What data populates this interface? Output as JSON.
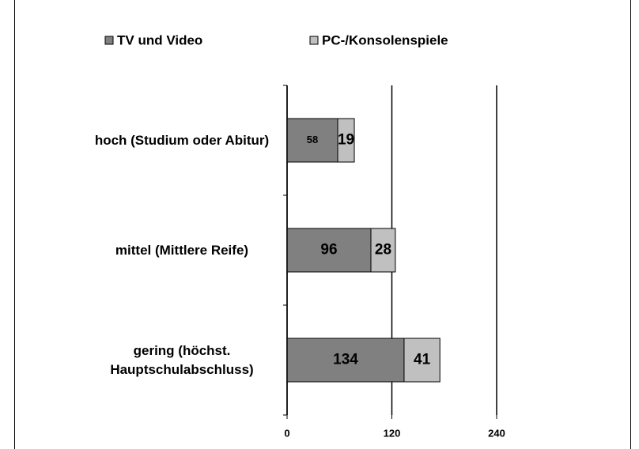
{
  "chart_data": {
    "type": "bar",
    "orientation": "horizontal",
    "stacked": true,
    "categories": [
      "hoch (Studium oder Abitur)",
      "mittel (Mittlere Reife)",
      "gering (höchst. Hauptschulabschluss)"
    ],
    "series": [
      {
        "name": "TV und Video",
        "color": "#808080",
        "values": [
          58,
          96,
          134
        ]
      },
      {
        "name": "PC-/Konsolenspiele",
        "color": "#c0c0c0",
        "values": [
          19,
          28,
          41
        ]
      }
    ],
    "xlim": [
      0,
      240
    ],
    "xticks": [
      0,
      120,
      240
    ],
    "grid": true,
    "legend": "top"
  }
}
